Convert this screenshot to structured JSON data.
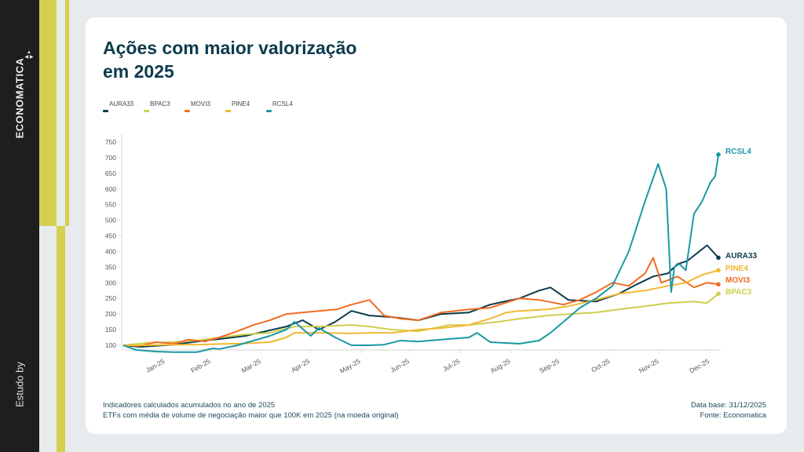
{
  "sidebar": {
    "brand": "ECONOMATICA",
    "credit": "Estudo by"
  },
  "header": {
    "title_line1": "Ações com maior valorização",
    "title_line2": "em 2025"
  },
  "footer": {
    "note1": "Indicadores calculados acumulados no ano de 2025",
    "note2": "ETFs com média de volume de negociação maior que 100K em 2025 (na moeda original)",
    "data_base": "Data base: 31/12/2025",
    "source": "Fonte: Economatica"
  },
  "chart_data": {
    "type": "line",
    "title": "Ações com maior valorização em 2025",
    "xlabel": "",
    "ylabel": "",
    "ylim": [
      100,
      750
    ],
    "yticks": [
      100,
      150,
      200,
      250,
      300,
      350,
      400,
      450,
      500,
      550,
      600,
      650,
      700,
      750
    ],
    "xticks": [
      "Jan-25",
      "Feb-25",
      "Mar-25",
      "Apr-25",
      "May-25",
      "Jun-25",
      "Jul-25",
      "Aug-25",
      "Sep-25",
      "Oct-25",
      "Nov-25",
      "Dec-25"
    ],
    "x_unit": "day of year 2025",
    "grid": false,
    "legend_position": "top-left",
    "series": [
      {
        "name": "AURA33",
        "color": "#0d3b4c",
        "end_label": "AURA33",
        "x": [
          0,
          10,
          20,
          31,
          45,
          59,
          75,
          90,
          100,
          110,
          120,
          130,
          140,
          151,
          165,
          181,
          195,
          212,
          225,
          243,
          255,
          262,
          273,
          290,
          304,
          315,
          325,
          334,
          340,
          346,
          352,
          358,
          365
        ],
        "values": [
          100,
          95,
          98,
          102,
          112,
          120,
          130,
          148,
          160,
          180,
          150,
          175,
          210,
          195,
          190,
          180,
          200,
          205,
          230,
          250,
          275,
          285,
          245,
          240,
          265,
          295,
          320,
          330,
          360,
          370,
          395,
          420,
          380
        ]
      },
      {
        "name": "BPAC3",
        "color": "#cfcf4e",
        "end_label": "BPAC3",
        "x": [
          0,
          15,
          31,
          45,
          59,
          75,
          90,
          105,
          120,
          140,
          151,
          165,
          181,
          200,
          212,
          230,
          243,
          260,
          273,
          290,
          304,
          320,
          334,
          350,
          358,
          365
        ],
        "values": [
          100,
          108,
          110,
          115,
          125,
          135,
          140,
          160,
          160,
          165,
          160,
          150,
          145,
          165,
          165,
          175,
          185,
          195,
          200,
          205,
          215,
          225,
          235,
          240,
          235,
          265
        ]
      },
      {
        "name": "MOVI3",
        "color": "#f26b21",
        "end_label": "MOVI3",
        "x": [
          0,
          10,
          20,
          31,
          40,
          50,
          59,
          70,
          80,
          90,
          100,
          110,
          120,
          131,
          140,
          151,
          160,
          170,
          181,
          195,
          212,
          225,
          243,
          255,
          270,
          280,
          290,
          300,
          310,
          320,
          325,
          330,
          340,
          350,
          358,
          365
        ],
        "values": [
          100,
          98,
          110,
          105,
          118,
          112,
          125,
          145,
          165,
          180,
          200,
          205,
          210,
          215,
          230,
          245,
          195,
          185,
          180,
          205,
          215,
          220,
          250,
          245,
          230,
          245,
          270,
          300,
          290,
          330,
          380,
          300,
          320,
          285,
          300,
          295
        ]
      },
      {
        "name": "PINE4",
        "color": "#f2b830",
        "end_label": "PINE4",
        "x": [
          0,
          15,
          31,
          45,
          59,
          75,
          90,
          100,
          105,
          120,
          140,
          151,
          165,
          181,
          195,
          212,
          225,
          235,
          243,
          260,
          273,
          290,
          304,
          320,
          334,
          345,
          355,
          365
        ],
        "values": [
          100,
          100,
          102,
          102,
          104,
          106,
          110,
          125,
          140,
          140,
          138,
          140,
          140,
          150,
          155,
          165,
          185,
          205,
          210,
          215,
          225,
          245,
          265,
          275,
          290,
          300,
          325,
          340
        ]
      },
      {
        "name": "RCSL4",
        "color": "#1a98a5",
        "end_label": "RCSL4",
        "x": [
          0,
          8,
          20,
          31,
          45,
          55,
          59,
          70,
          80,
          90,
          100,
          105,
          115,
          120,
          130,
          140,
          151,
          160,
          170,
          181,
          195,
          212,
          217,
          225,
          243,
          255,
          262,
          270,
          280,
          290,
          300,
          310,
          320,
          328,
          333,
          336,
          338,
          341,
          345,
          350,
          355,
          360,
          363,
          365
        ],
        "values": [
          100,
          85,
          80,
          78,
          78,
          90,
          88,
          100,
          115,
          130,
          150,
          175,
          130,
          155,
          125,
          100,
          100,
          102,
          115,
          112,
          118,
          125,
          140,
          110,
          105,
          115,
          140,
          175,
          220,
          250,
          290,
          400,
          560,
          680,
          600,
          270,
          350,
          360,
          340,
          520,
          560,
          620,
          640,
          710
        ]
      }
    ]
  }
}
